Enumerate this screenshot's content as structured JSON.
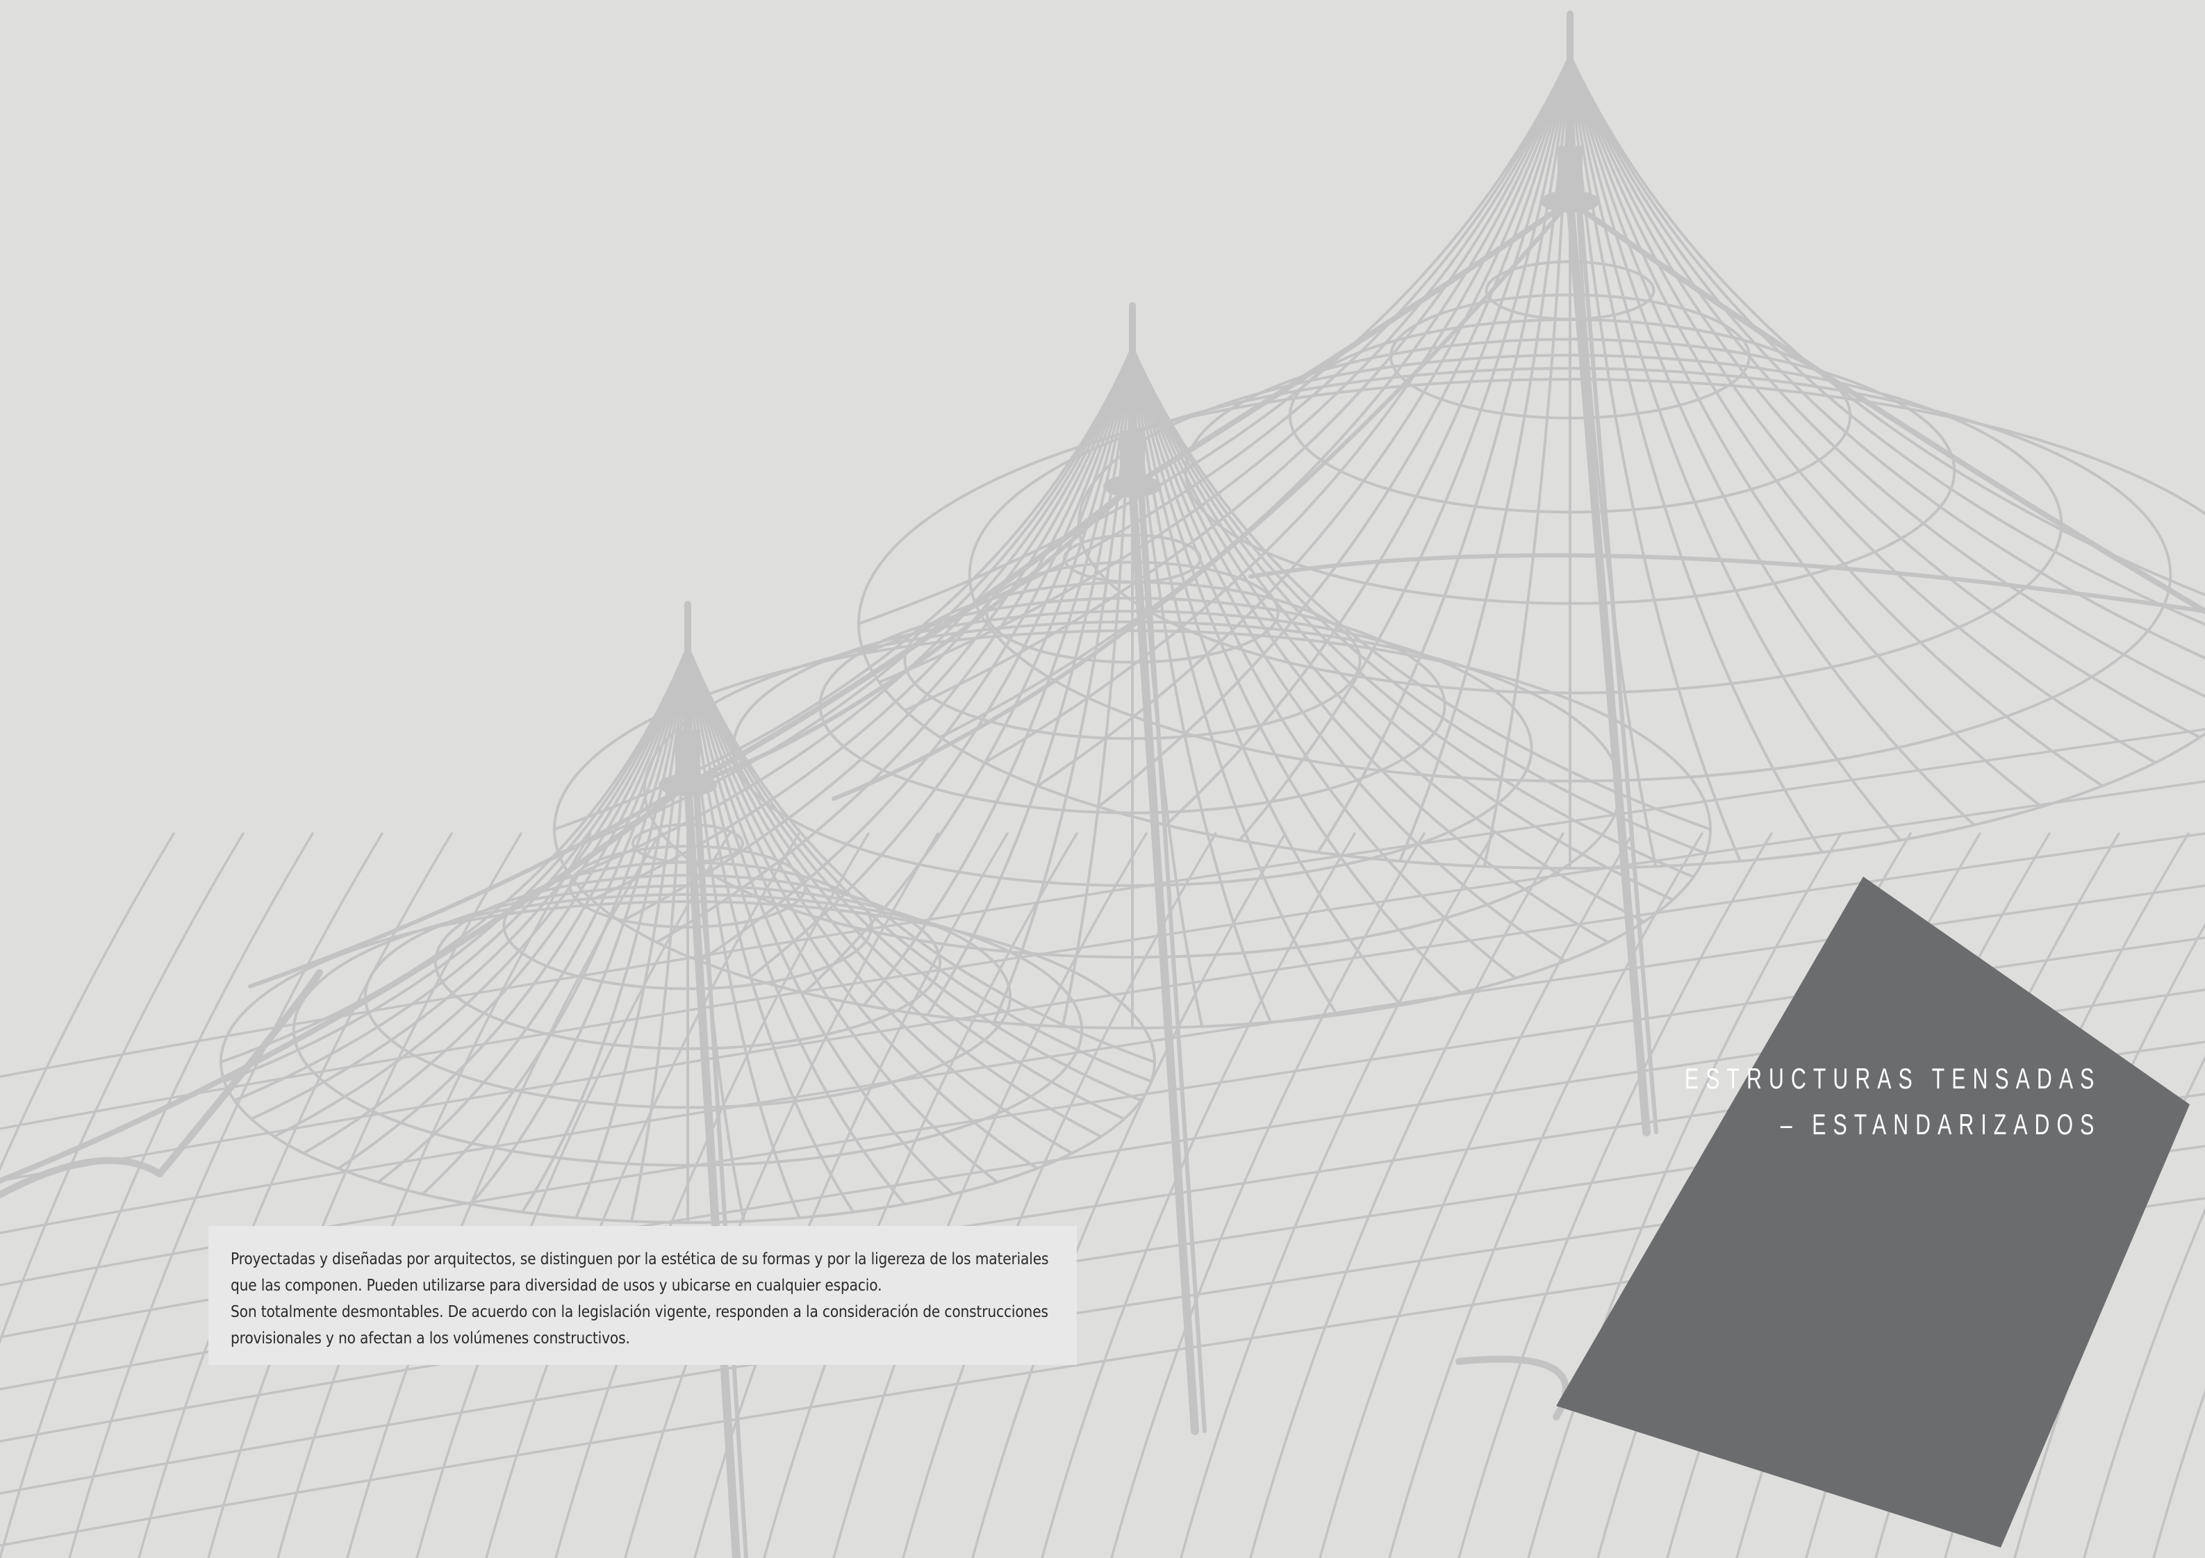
{
  "colors": {
    "background": "#dededd",
    "structure": "#c3c3c3",
    "panel": "#6b6c6e",
    "text_box": "#e8e8e8",
    "title_text": "#ffffff"
  },
  "illustration": "tensioned-membrane-structure-wireframe",
  "title": {
    "line1": "ESTRUCTURAS TENSADAS",
    "line2": "– ESTANDARIZADOS"
  },
  "body": {
    "paragraph1": "Proyectadas y diseñadas por arquitectos, se distinguen por la estética de su formas y por la ligereza de los materiales que las componen. Pueden utilizarse para diversidad de usos y ubicarse en cualquier espacio.",
    "paragraph2": "Son totalmente desmontables. De acuerdo con la legislación vigente, responden a la consideración de construcciones provisionales y no afectan a los volúmenes constructivos."
  }
}
